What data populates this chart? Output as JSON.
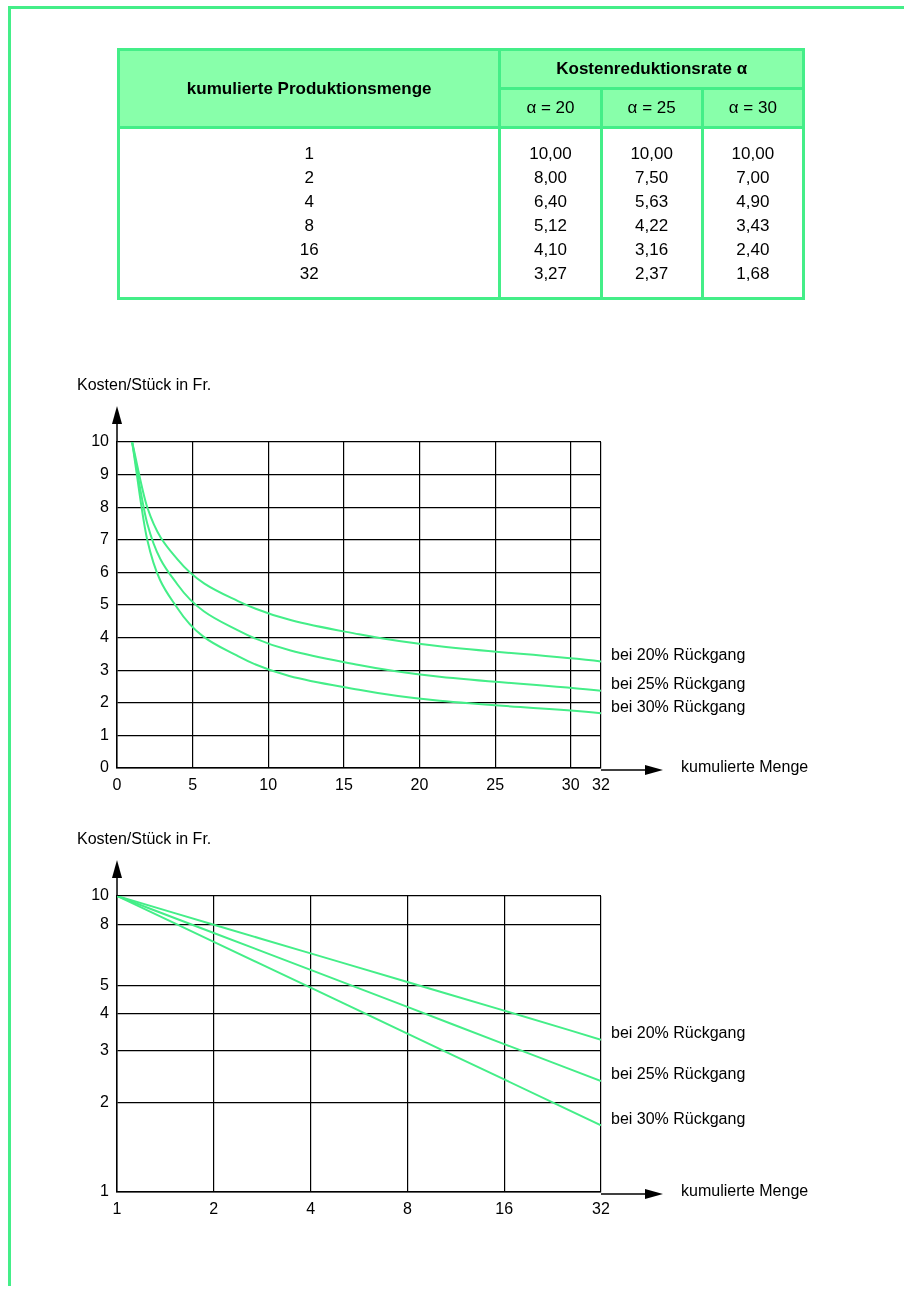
{
  "chart_data": [
    {
      "type": "other",
      "title": "Kostenreduktionsrate α",
      "xlabel": "kumulierte Produktionsmenge",
      "categories": [
        "1",
        "2",
        "4",
        "8",
        "16",
        "32"
      ],
      "series": [
        {
          "name": "α = 20",
          "values": [
            10,
            8,
            6.4,
            5.12,
            4.1,
            3.27
          ],
          "value_labels": [
            "10,00",
            "8,00",
            "6,40",
            "5,12",
            "4,10",
            "3,27"
          ]
        },
        {
          "name": "α = 25",
          "values": [
            10,
            7.5,
            5.63,
            4.22,
            3.16,
            2.37
          ],
          "value_labels": [
            "10,00",
            "7,50",
            "5,63",
            "4,22",
            "3,16",
            "2,37"
          ]
        },
        {
          "name": "α = 30",
          "values": [
            10,
            7,
            4.9,
            3.43,
            2.4,
            1.68
          ],
          "value_labels": [
            "10,00",
            "7,00",
            "4,90",
            "3,43",
            "2,40",
            "1,68"
          ]
        }
      ]
    },
    {
      "type": "line",
      "ylabel": "Kosten/Stück in Fr.",
      "xlabel": "kumulierte Menge",
      "x": [
        1,
        2,
        4,
        8,
        16,
        32
      ],
      "xlim": [
        0,
        32
      ],
      "xticks": [
        0,
        5,
        10,
        15,
        20,
        25,
        30,
        32
      ],
      "ylim": [
        0,
        10
      ],
      "yticks": [
        0,
        1,
        2,
        3,
        4,
        5,
        6,
        7,
        8,
        9,
        10
      ],
      "grid": true,
      "legend": false,
      "series": [
        {
          "name": "bei 20% Rückgang",
          "color": "#44ee88",
          "values": [
            10,
            8,
            6.4,
            5.12,
            4.1,
            3.27
          ]
        },
        {
          "name": "bei 25% Rückgang",
          "color": "#44ee88",
          "values": [
            10,
            7.5,
            5.63,
            4.22,
            3.16,
            2.37
          ]
        },
        {
          "name": "bei 30% Rückgang",
          "color": "#44ee88",
          "values": [
            10,
            7,
            4.9,
            3.43,
            2.4,
            1.68
          ]
        }
      ]
    },
    {
      "type": "line",
      "ylabel": "Kosten/Stück in Fr.",
      "xlabel": "kumulierte Menge",
      "log": "xy",
      "x": [
        1,
        2,
        4,
        8,
        16,
        32
      ],
      "xlim": [
        1,
        32
      ],
      "xticks": [
        1,
        2,
        4,
        8,
        16,
        32
      ],
      "ylim": [
        1,
        10
      ],
      "yticks": [
        1,
        2,
        3,
        4,
        5,
        8,
        10
      ],
      "grid": true,
      "legend": false,
      "series": [
        {
          "name": "bei 20% Rückgang",
          "color": "#44ee88",
          "values": [
            10,
            8,
            6.4,
            5.12,
            4.1,
            3.27
          ]
        },
        {
          "name": "bei 25% Rückgang",
          "color": "#44ee88",
          "values": [
            10,
            7.5,
            5.63,
            4.22,
            3.16,
            2.37
          ]
        },
        {
          "name": "bei 30% Rückgang",
          "color": "#44ee88",
          "values": [
            10,
            7,
            4.9,
            3.43,
            2.4,
            1.68
          ]
        }
      ]
    }
  ]
}
